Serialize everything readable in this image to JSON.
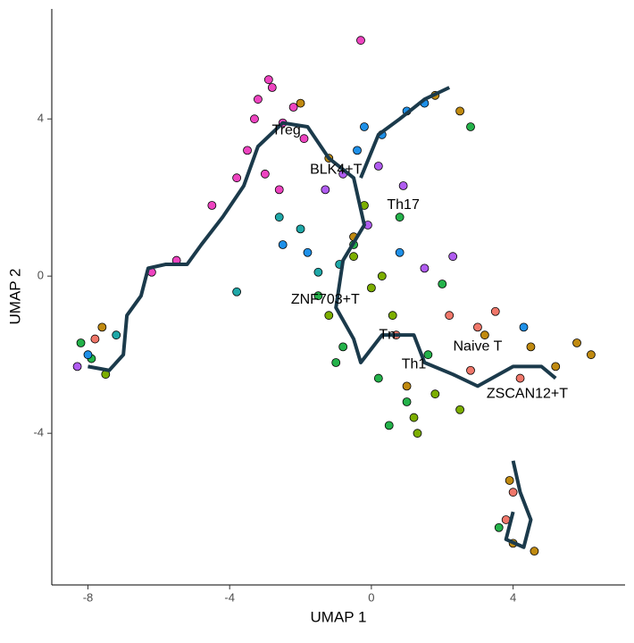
{
  "chart_data": {
    "type": "scatter",
    "xlabel": "UMAP 1",
    "ylabel": "UMAP 2",
    "xlim": [
      -9.02,
      7.16
    ],
    "ylim": [
      -7.86,
      6.8
    ],
    "xticks": [
      -8,
      -4,
      0,
      4
    ],
    "yticks": [
      -4,
      0,
      4
    ],
    "series": [
      {
        "color": "#EE44C0",
        "x": [
          -3.2,
          -2.8,
          -2.5,
          -3.5,
          -2.2,
          -3.0,
          -2.6,
          -1.9,
          -3.3,
          -4.5,
          -5.5,
          -6.2,
          -2.9,
          -0.3,
          -3.8
        ],
        "y": [
          4.5,
          4.8,
          3.9,
          3.2,
          4.3,
          2.6,
          2.2,
          3.5,
          4.0,
          1.8,
          0.4,
          0.1,
          5.0,
          6.0,
          2.5
        ]
      },
      {
        "color": "#C08A10",
        "x": [
          -1.2,
          -0.5,
          1.8,
          2.5,
          3.2,
          4.5,
          5.2,
          5.8,
          6.2,
          4.0,
          3.9,
          4.6,
          -7.6,
          1.0,
          -2.0
        ],
        "y": [
          3.0,
          1.0,
          4.6,
          4.2,
          -1.5,
          -1.8,
          -2.3,
          -1.7,
          -2.0,
          -6.8,
          -5.2,
          -7.0,
          -1.3,
          -2.8,
          4.4
        ]
      },
      {
        "color": "#24B24A",
        "x": [
          -1.5,
          -0.8,
          0.2,
          1.0,
          1.6,
          -0.5,
          0.8,
          2.0,
          -7.9,
          -8.2,
          3.6,
          2.8,
          0.5,
          -1.0
        ],
        "y": [
          -0.5,
          -1.8,
          -2.6,
          -3.2,
          -2.0,
          0.8,
          1.5,
          -0.2,
          -2.1,
          -1.7,
          -6.4,
          3.8,
          -3.8,
          -2.2
        ]
      },
      {
        "color": "#7CAE00",
        "x": [
          -0.5,
          0.0,
          0.6,
          1.2,
          1.8,
          2.5,
          -1.2,
          1.3,
          -0.2,
          -7.5,
          0.3
        ],
        "y": [
          0.5,
          -0.3,
          -1.0,
          -3.6,
          -3.0,
          -3.4,
          -1.0,
          -4.0,
          1.8,
          -2.5,
          0.0
        ]
      },
      {
        "color": "#1E90E8",
        "x": [
          1.0,
          0.3,
          -0.2,
          1.5,
          -2.5,
          -0.4,
          4.3,
          -8.0,
          0.8,
          -1.8
        ],
        "y": [
          4.2,
          3.6,
          3.8,
          4.4,
          0.8,
          3.2,
          -1.3,
          -2.0,
          0.6,
          0.6
        ]
      },
      {
        "color": "#B05CF0",
        "x": [
          -0.8,
          0.2,
          0.9,
          2.3,
          -8.3,
          -1.3,
          1.5,
          -0.1
        ],
        "y": [
          2.6,
          2.8,
          2.3,
          0.5,
          -2.3,
          2.2,
          0.2,
          1.3
        ]
      },
      {
        "color": "#1FA8A8",
        "x": [
          -2.0,
          -3.8,
          -1.5,
          -7.2,
          -0.9,
          -2.6
        ],
        "y": [
          1.2,
          -0.4,
          0.1,
          -1.5,
          0.3,
          1.5
        ]
      },
      {
        "color": "#F0776A",
        "x": [
          2.2,
          3.0,
          3.5,
          4.2,
          2.8,
          -7.8,
          4.0,
          3.8,
          0.7
        ],
        "y": [
          -1.0,
          -1.3,
          -0.9,
          -2.6,
          -2.4,
          -1.6,
          -5.5,
          -6.2,
          -1.5
        ]
      }
    ],
    "trajectory": {
      "color": "#1B3A4B",
      "x": [
        -8.0,
        -7.4,
        -7.0,
        -6.9,
        -6.5,
        -6.3,
        -5.8,
        -5.2,
        -4.8,
        -4.2,
        -3.6,
        -3.2,
        -2.5,
        -1.8,
        -1.2,
        -0.5,
        -0.2,
        -0.8,
        -1.0,
        -0.5,
        -0.3,
        0.3,
        1.2,
        1.5,
        2.3,
        3.0,
        4.0,
        4.8,
        5.2,
        null,
        -0.3,
        0.2,
        0.8,
        1.5,
        2.2,
        null,
        4.0,
        4.2,
        4.5,
        4.3,
        3.8,
        4.0
      ],
      "y": [
        -2.3,
        -2.4,
        -2.0,
        -1.0,
        -0.5,
        0.2,
        0.3,
        0.3,
        0.8,
        1.5,
        2.3,
        3.3,
        3.9,
        3.8,
        3.0,
        2.5,
        1.3,
        0.4,
        -0.8,
        -1.6,
        -2.2,
        -1.5,
        -1.5,
        -2.2,
        -2.5,
        -2.8,
        -2.3,
        -2.3,
        -2.6,
        null,
        2.5,
        3.6,
        4.0,
        4.5,
        4.8,
        null,
        -4.7,
        -5.5,
        -6.2,
        -6.9,
        -6.7,
        -6.0
      ]
    },
    "annotations": [
      {
        "text": "Treg",
        "x": -2.4,
        "y": 3.7
      },
      {
        "text": "BLK4+T",
        "x": -1.0,
        "y": 2.7
      },
      {
        "text": "Th17",
        "x": 0.9,
        "y": 1.8
      },
      {
        "text": "ZNF703+T",
        "x": -1.3,
        "y": -0.6
      },
      {
        "text": "Tn",
        "x": 0.45,
        "y": -1.5
      },
      {
        "text": "Th1",
        "x": 1.2,
        "y": -2.25
      },
      {
        "text": "Naive T",
        "x": 3.0,
        "y": -1.8
      },
      {
        "text": "ZSCAN12+T",
        "x": 4.4,
        "y": -3.0
      }
    ]
  }
}
